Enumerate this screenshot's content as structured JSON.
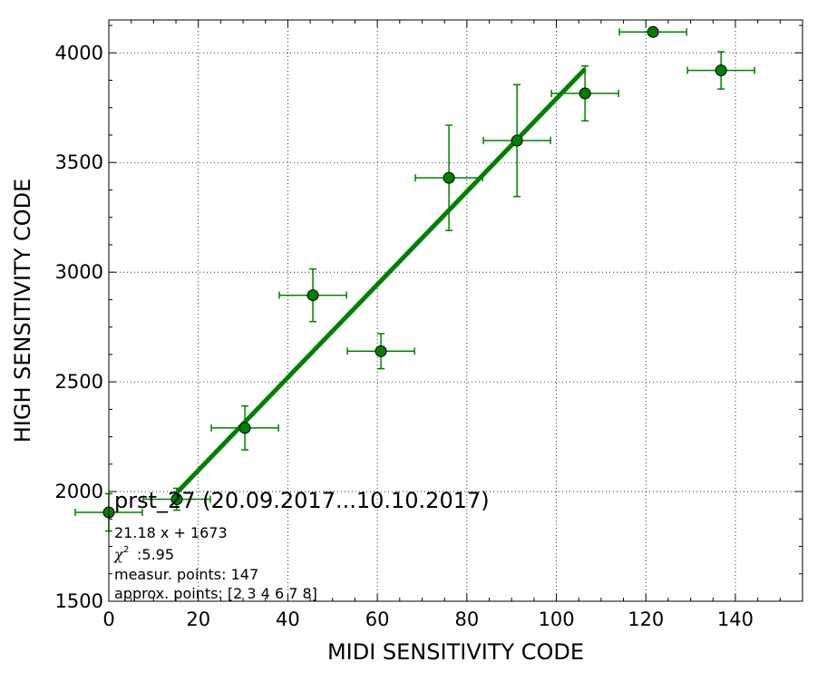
{
  "chart_data": {
    "type": "scatter",
    "xlabel": "MIDI SENSITIVITY CODE",
    "ylabel": "HIGH SENSITIVITY CODE",
    "xlim": [
      0,
      155
    ],
    "ylim": [
      1500,
      4150
    ],
    "xticks": [
      0,
      20,
      40,
      60,
      80,
      100,
      120,
      140
    ],
    "yticks": [
      1500,
      2000,
      2500,
      3000,
      3500,
      4000
    ],
    "grid": true,
    "series": [
      {
        "type": "errorbar",
        "color": "#008000",
        "points": [
          {
            "x": 0.0,
            "y": 1905,
            "xerr": 7.5,
            "yerr": 85
          },
          {
            "x": 15.2,
            "y": 1965,
            "xerr": 7.5,
            "yerr": 50
          },
          {
            "x": 30.4,
            "y": 2290,
            "xerr": 7.5,
            "yerr": 100
          },
          {
            "x": 45.6,
            "y": 2895,
            "xerr": 7.5,
            "yerr": 120
          },
          {
            "x": 60.8,
            "y": 2640,
            "xerr": 7.5,
            "yerr": 80
          },
          {
            "x": 76.0,
            "y": 3430,
            "xerr": 7.5,
            "yerr": 240
          },
          {
            "x": 91.2,
            "y": 3600,
            "xerr": 7.5,
            "yerr": 255
          },
          {
            "x": 106.4,
            "y": 3815,
            "xerr": 7.5,
            "yerr": 125
          },
          {
            "x": 121.6,
            "y": 4095,
            "xerr": 7.5,
            "yerr": 0
          },
          {
            "x": 136.8,
            "y": 3920,
            "xerr": 7.5,
            "yerr": 85
          }
        ]
      },
      {
        "type": "fit-line",
        "color": "#008000",
        "slope": 21.18,
        "intercept": 1673,
        "x_range": [
          15.2,
          106.4
        ]
      }
    ],
    "annotations": {
      "title": "prst_27 (20.09.2017...10.10.2017)",
      "equation": "21.18 x + 1673",
      "chi2_symbol": "χ",
      "chi2_value": ":5.95",
      "measur_points": "measur. points: 147",
      "approx_points": "approx. points: [2 3 4 6 7 8]"
    }
  }
}
